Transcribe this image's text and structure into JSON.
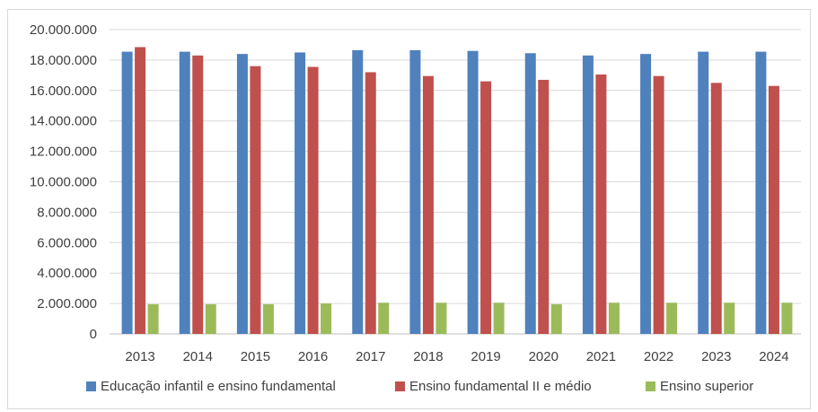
{
  "chart_data": {
    "type": "bar",
    "categories": [
      "2013",
      "2014",
      "2015",
      "2016",
      "2017",
      "2018",
      "2019",
      "2020",
      "2021",
      "2022",
      "2023",
      "2024"
    ],
    "series": [
      {
        "name": "Educação infantil e ensino fundamental",
        "color": "#4f81bd",
        "values": [
          18550000,
          18550000,
          18400000,
          18500000,
          18650000,
          18650000,
          18600000,
          18450000,
          18300000,
          18400000,
          18550000,
          18550000
        ]
      },
      {
        "name": "Ensino fundamental II e médio",
        "color": "#c0504d",
        "values": [
          18850000,
          18300000,
          17600000,
          17550000,
          17200000,
          16950000,
          16600000,
          16700000,
          17050000,
          16950000,
          16500000,
          16300000
        ]
      },
      {
        "name": "Ensino superior",
        "color": "#9bbb59",
        "values": [
          1950000,
          1950000,
          1950000,
          2000000,
          2050000,
          2050000,
          2050000,
          1950000,
          2050000,
          2050000,
          2050000,
          2050000
        ]
      }
    ],
    "yticks": [
      "0",
      "2.000.000",
      "4.000.000",
      "6.000.000",
      "8.000.000",
      "10.000.000",
      "12.000.000",
      "14.000.000",
      "16.000.000",
      "18.000.000",
      "20.000.000"
    ],
    "ylim": [
      0,
      20000000
    ],
    "grid": true,
    "legend_position": "bottom"
  }
}
